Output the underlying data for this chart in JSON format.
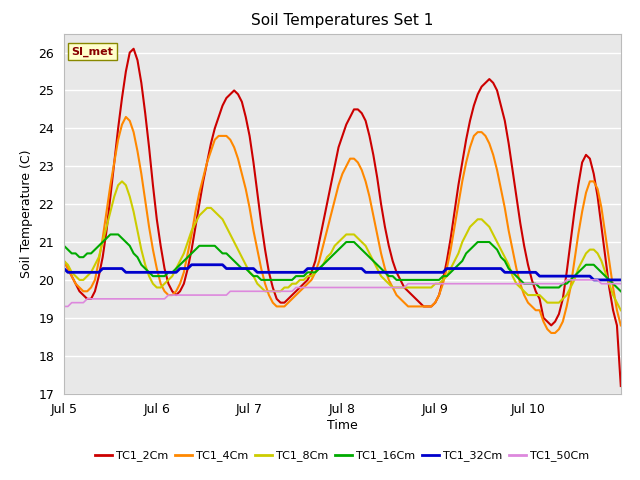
{
  "title": "Soil Temperatures Set 1",
  "xlabel": "Time",
  "ylabel": "Soil Temperature (C)",
  "ylim": [
    17.0,
    26.5
  ],
  "yticks": [
    17.0,
    18.0,
    19.0,
    20.0,
    21.0,
    22.0,
    23.0,
    24.0,
    25.0,
    26.0
  ],
  "fig_bg_color": "#ffffff",
  "plot_bg": "#e8e8e8",
  "annotation_text": "SI_met",
  "series": {
    "TC1_2Cm": {
      "color": "#cc0000",
      "lw": 1.5
    },
    "TC1_4Cm": {
      "color": "#ff8800",
      "lw": 1.5
    },
    "TC1_8Cm": {
      "color": "#cccc00",
      "lw": 1.5
    },
    "TC1_16Cm": {
      "color": "#00aa00",
      "lw": 1.5
    },
    "TC1_32Cm": {
      "color": "#0000cc",
      "lw": 2.0
    },
    "TC1_50Cm": {
      "color": "#dd88dd",
      "lw": 1.2
    }
  },
  "legend_colors": [
    "#cc0000",
    "#ff8800",
    "#cccc00",
    "#00aa00",
    "#0000cc",
    "#dd88dd"
  ],
  "legend_labels": [
    "TC1_2Cm",
    "TC1_4Cm",
    "TC1_8Cm",
    "TC1_16Cm",
    "TC1_32Cm",
    "TC1_50Cm"
  ],
  "xtick_positions": [
    0,
    24,
    48,
    72,
    96,
    120,
    144
  ],
  "xtick_labels": [
    "Jul 5",
    "Jul 6",
    "Jul 7",
    "Jul 8",
    "Jul 9",
    "Jul 10",
    ""
  ],
  "n_points": 145,
  "TC1_2Cm": [
    20.5,
    20.3,
    20.1,
    19.9,
    19.7,
    19.6,
    19.5,
    19.5,
    19.7,
    20.1,
    20.6,
    21.3,
    22.2,
    23.1,
    24.0,
    24.8,
    25.5,
    26.0,
    26.1,
    25.8,
    25.2,
    24.4,
    23.5,
    22.5,
    21.6,
    20.9,
    20.3,
    19.9,
    19.7,
    19.6,
    19.7,
    19.9,
    20.3,
    20.8,
    21.4,
    22.0,
    22.6,
    23.1,
    23.6,
    24.0,
    24.3,
    24.6,
    24.8,
    24.9,
    25.0,
    24.9,
    24.7,
    24.3,
    23.8,
    23.1,
    22.3,
    21.5,
    20.8,
    20.2,
    19.8,
    19.5,
    19.4,
    19.4,
    19.5,
    19.6,
    19.7,
    19.8,
    19.9,
    20.0,
    20.2,
    20.5,
    21.0,
    21.5,
    22.0,
    22.5,
    23.0,
    23.5,
    23.8,
    24.1,
    24.3,
    24.5,
    24.5,
    24.4,
    24.2,
    23.8,
    23.3,
    22.7,
    22.0,
    21.4,
    20.9,
    20.5,
    20.2,
    20.0,
    19.8,
    19.7,
    19.6,
    19.5,
    19.4,
    19.3,
    19.3,
    19.3,
    19.4,
    19.6,
    20.0,
    20.5,
    21.1,
    21.8,
    22.5,
    23.1,
    23.7,
    24.2,
    24.6,
    24.9,
    25.1,
    25.2,
    25.3,
    25.2,
    25.0,
    24.6,
    24.2,
    23.6,
    22.9,
    22.2,
    21.5,
    20.9,
    20.4,
    20.0,
    19.7,
    19.5,
    19.0,
    18.9,
    18.8,
    18.9,
    19.1,
    19.5,
    20.2,
    21.0,
    21.8,
    22.5,
    23.1,
    23.3,
    23.2,
    22.8,
    22.2,
    21.4,
    20.6,
    19.8,
    19.2,
    18.8,
    17.2
  ],
  "TC1_4Cm": [
    20.5,
    20.3,
    20.1,
    19.9,
    19.8,
    19.7,
    19.7,
    19.8,
    20.0,
    20.5,
    21.1,
    21.8,
    22.5,
    23.1,
    23.7,
    24.1,
    24.3,
    24.2,
    23.9,
    23.4,
    22.8,
    22.1,
    21.4,
    20.8,
    20.3,
    19.9,
    19.7,
    19.6,
    19.6,
    19.7,
    19.9,
    20.2,
    20.7,
    21.2,
    21.8,
    22.3,
    22.7,
    23.1,
    23.4,
    23.7,
    23.8,
    23.8,
    23.8,
    23.7,
    23.5,
    23.2,
    22.8,
    22.4,
    21.9,
    21.3,
    20.8,
    20.3,
    19.9,
    19.6,
    19.4,
    19.3,
    19.3,
    19.3,
    19.4,
    19.5,
    19.6,
    19.7,
    19.8,
    19.9,
    20.0,
    20.2,
    20.5,
    20.9,
    21.3,
    21.7,
    22.1,
    22.5,
    22.8,
    23.0,
    23.2,
    23.2,
    23.1,
    22.9,
    22.6,
    22.2,
    21.7,
    21.2,
    20.7,
    20.3,
    20.0,
    19.8,
    19.6,
    19.5,
    19.4,
    19.3,
    19.3,
    19.3,
    19.3,
    19.3,
    19.3,
    19.3,
    19.4,
    19.6,
    19.9,
    20.3,
    20.8,
    21.4,
    22.0,
    22.6,
    23.1,
    23.5,
    23.8,
    23.9,
    23.9,
    23.8,
    23.6,
    23.3,
    22.9,
    22.4,
    21.9,
    21.3,
    20.8,
    20.3,
    19.9,
    19.6,
    19.4,
    19.3,
    19.2,
    19.2,
    18.9,
    18.7,
    18.6,
    18.6,
    18.7,
    18.9,
    19.3,
    19.8,
    20.5,
    21.2,
    21.8,
    22.3,
    22.6,
    22.6,
    22.4,
    21.9,
    21.2,
    20.5,
    19.8,
    19.2,
    18.8
  ],
  "TC1_8Cm": [
    20.5,
    20.4,
    20.2,
    20.1,
    20.0,
    20.0,
    20.1,
    20.2,
    20.4,
    20.6,
    21.0,
    21.4,
    21.8,
    22.2,
    22.5,
    22.6,
    22.5,
    22.2,
    21.8,
    21.3,
    20.8,
    20.4,
    20.1,
    19.9,
    19.8,
    19.8,
    19.9,
    20.0,
    20.1,
    20.3,
    20.5,
    20.7,
    21.0,
    21.3,
    21.5,
    21.7,
    21.8,
    21.9,
    21.9,
    21.8,
    21.7,
    21.6,
    21.4,
    21.2,
    21.0,
    20.8,
    20.6,
    20.4,
    20.2,
    20.1,
    19.9,
    19.8,
    19.7,
    19.7,
    19.7,
    19.7,
    19.7,
    19.8,
    19.8,
    19.9,
    19.9,
    20.0,
    20.0,
    20.1,
    20.1,
    20.2,
    20.3,
    20.4,
    20.6,
    20.7,
    20.9,
    21.0,
    21.1,
    21.2,
    21.2,
    21.2,
    21.1,
    21.0,
    20.9,
    20.7,
    20.5,
    20.3,
    20.1,
    20.0,
    19.9,
    19.8,
    19.8,
    19.8,
    19.8,
    19.8,
    19.8,
    19.8,
    19.8,
    19.8,
    19.8,
    19.8,
    19.9,
    19.9,
    20.0,
    20.1,
    20.3,
    20.5,
    20.7,
    21.0,
    21.2,
    21.4,
    21.5,
    21.6,
    21.6,
    21.5,
    21.4,
    21.2,
    21.0,
    20.8,
    20.6,
    20.4,
    20.1,
    19.9,
    19.8,
    19.7,
    19.6,
    19.6,
    19.6,
    19.6,
    19.5,
    19.4,
    19.4,
    19.4,
    19.4,
    19.5,
    19.6,
    19.8,
    20.0,
    20.3,
    20.5,
    20.7,
    20.8,
    20.8,
    20.7,
    20.5,
    20.2,
    19.9,
    19.6,
    19.4,
    19.2
  ],
  "TC1_16Cm": [
    20.9,
    20.8,
    20.7,
    20.7,
    20.6,
    20.6,
    20.7,
    20.7,
    20.8,
    20.9,
    21.0,
    21.1,
    21.2,
    21.2,
    21.2,
    21.1,
    21.0,
    20.9,
    20.7,
    20.6,
    20.4,
    20.3,
    20.2,
    20.1,
    20.1,
    20.1,
    20.1,
    20.2,
    20.2,
    20.3,
    20.4,
    20.5,
    20.6,
    20.7,
    20.8,
    20.9,
    20.9,
    20.9,
    20.9,
    20.9,
    20.8,
    20.7,
    20.7,
    20.6,
    20.5,
    20.4,
    20.3,
    20.3,
    20.2,
    20.1,
    20.1,
    20.0,
    20.0,
    20.0,
    20.0,
    20.0,
    20.0,
    20.0,
    20.0,
    20.0,
    20.1,
    20.1,
    20.1,
    20.2,
    20.2,
    20.2,
    20.3,
    20.4,
    20.5,
    20.6,
    20.7,
    20.8,
    20.9,
    21.0,
    21.0,
    21.0,
    20.9,
    20.8,
    20.7,
    20.6,
    20.5,
    20.4,
    20.3,
    20.2,
    20.1,
    20.1,
    20.0,
    20.0,
    20.0,
    20.0,
    20.0,
    20.0,
    20.0,
    20.0,
    20.0,
    20.0,
    20.0,
    20.0,
    20.1,
    20.1,
    20.2,
    20.3,
    20.4,
    20.5,
    20.7,
    20.8,
    20.9,
    21.0,
    21.0,
    21.0,
    21.0,
    20.9,
    20.8,
    20.6,
    20.5,
    20.3,
    20.2,
    20.1,
    20.0,
    19.9,
    19.9,
    19.9,
    19.9,
    19.8,
    19.8,
    19.8,
    19.8,
    19.8,
    19.8,
    19.9,
    19.9,
    20.0,
    20.1,
    20.2,
    20.3,
    20.4,
    20.4,
    20.4,
    20.3,
    20.2,
    20.1,
    20.0,
    19.9,
    19.8,
    19.7
  ],
  "TC1_32Cm": [
    20.3,
    20.2,
    20.2,
    20.2,
    20.2,
    20.2,
    20.2,
    20.2,
    20.2,
    20.2,
    20.3,
    20.3,
    20.3,
    20.3,
    20.3,
    20.3,
    20.2,
    20.2,
    20.2,
    20.2,
    20.2,
    20.2,
    20.2,
    20.2,
    20.2,
    20.2,
    20.2,
    20.2,
    20.2,
    20.2,
    20.3,
    20.3,
    20.3,
    20.4,
    20.4,
    20.4,
    20.4,
    20.4,
    20.4,
    20.4,
    20.4,
    20.4,
    20.3,
    20.3,
    20.3,
    20.3,
    20.3,
    20.3,
    20.3,
    20.3,
    20.2,
    20.2,
    20.2,
    20.2,
    20.2,
    20.2,
    20.2,
    20.2,
    20.2,
    20.2,
    20.2,
    20.2,
    20.2,
    20.3,
    20.3,
    20.3,
    20.3,
    20.3,
    20.3,
    20.3,
    20.3,
    20.3,
    20.3,
    20.3,
    20.3,
    20.3,
    20.3,
    20.3,
    20.2,
    20.2,
    20.2,
    20.2,
    20.2,
    20.2,
    20.2,
    20.2,
    20.2,
    20.2,
    20.2,
    20.2,
    20.2,
    20.2,
    20.2,
    20.2,
    20.2,
    20.2,
    20.2,
    20.2,
    20.2,
    20.3,
    20.3,
    20.3,
    20.3,
    20.3,
    20.3,
    20.3,
    20.3,
    20.3,
    20.3,
    20.3,
    20.3,
    20.3,
    20.3,
    20.3,
    20.2,
    20.2,
    20.2,
    20.2,
    20.2,
    20.2,
    20.2,
    20.2,
    20.2,
    20.1,
    20.1,
    20.1,
    20.1,
    20.1,
    20.1,
    20.1,
    20.1,
    20.1,
    20.1,
    20.1,
    20.1,
    20.1,
    20.1,
    20.0,
    20.0,
    20.0,
    20.0,
    20.0,
    20.0,
    20.0,
    20.0
  ],
  "TC1_50Cm": [
    19.3,
    19.3,
    19.4,
    19.4,
    19.4,
    19.4,
    19.5,
    19.5,
    19.5,
    19.5,
    19.5,
    19.5,
    19.5,
    19.5,
    19.5,
    19.5,
    19.5,
    19.5,
    19.5,
    19.5,
    19.5,
    19.5,
    19.5,
    19.5,
    19.5,
    19.5,
    19.5,
    19.6,
    19.6,
    19.6,
    19.6,
    19.6,
    19.6,
    19.6,
    19.6,
    19.6,
    19.6,
    19.6,
    19.6,
    19.6,
    19.6,
    19.6,
    19.6,
    19.7,
    19.7,
    19.7,
    19.7,
    19.7,
    19.7,
    19.7,
    19.7,
    19.7,
    19.7,
    19.7,
    19.7,
    19.7,
    19.7,
    19.7,
    19.7,
    19.7,
    19.8,
    19.8,
    19.8,
    19.8,
    19.8,
    19.8,
    19.8,
    19.8,
    19.8,
    19.8,
    19.8,
    19.8,
    19.8,
    19.8,
    19.8,
    19.8,
    19.8,
    19.8,
    19.8,
    19.8,
    19.8,
    19.8,
    19.8,
    19.8,
    19.8,
    19.8,
    19.8,
    19.8,
    19.8,
    19.9,
    19.9,
    19.9,
    19.9,
    19.9,
    19.9,
    19.9,
    19.9,
    19.9,
    19.9,
    19.9,
    19.9,
    19.9,
    19.9,
    19.9,
    19.9,
    19.9,
    19.9,
    19.9,
    19.9,
    19.9,
    19.9,
    19.9,
    19.9,
    19.9,
    19.9,
    19.9,
    19.9,
    19.9,
    19.9,
    19.9,
    19.9,
    19.9,
    19.9,
    19.9,
    19.9,
    19.9,
    19.9,
    19.9,
    19.9,
    19.9,
    20.0,
    20.0,
    20.0,
    20.0,
    20.0,
    20.0,
    20.0,
    20.0,
    20.0,
    19.9,
    19.9,
    19.9,
    19.9,
    19.9,
    19.9
  ]
}
